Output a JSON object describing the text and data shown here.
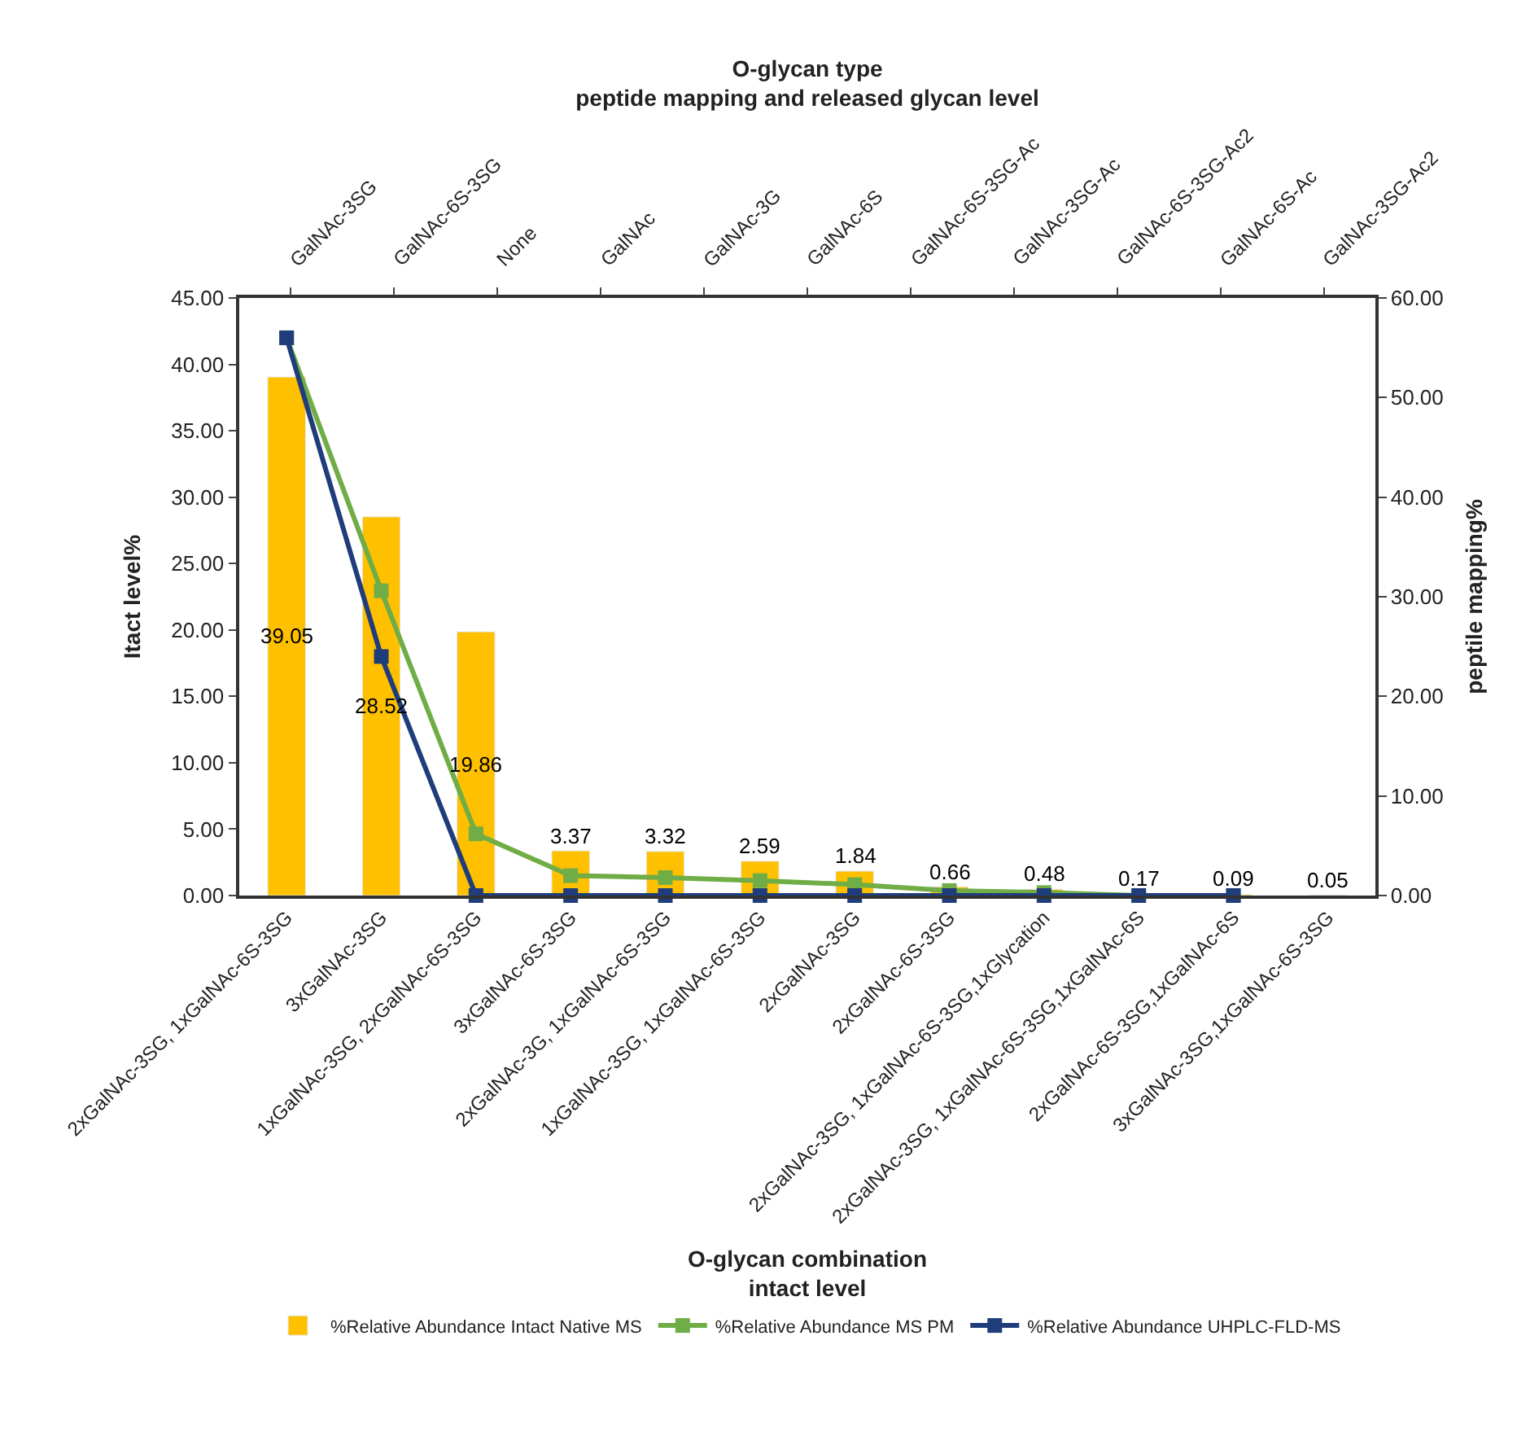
{
  "chart_data": {
    "type": "bar",
    "x2label": "O-glycan type\npeptide mapping and released glycan level",
    "xlabel": "O-glycan combination\nintact level",
    "ylabel": "Itact level%",
    "y2label": "peptile mapping%",
    "categories": [
      "2xGalNAc-3SG, 1xGalNAc-6S-3SG",
      "3xGalNAc-3SG",
      "1xGalNAc-3SG, 2xGalNAc-6S-3SG",
      "3xGalNAc-6S-3SG",
      "2xGalNAc-3G, 1xGalNAc-6S-3SG",
      "1xGalNAc-3SG, 1xGalNAc-6S-3SG",
      "2xGalNAc-3SG",
      "2xGalNAc-6S-3SG",
      "2xGalNAc-3SG, 1xGalNAc-6S-3SG,1xGlycation",
      "2xGalNAc-3SG, 1xGalNAc-6S-3SG,1xGalNAc-6S",
      "2xGalNAc-6S-3SG,1xGalNAc-6S",
      "3xGalNAc-3SG,1xGalNAc-6S-3SG"
    ],
    "annotations": [
      "GalNAc-3SG",
      "GalNAc-6S-3SG",
      "None",
      "GalNAc",
      "GalNAc-3G",
      "GalNAc-6S",
      "GalNAc-6S-3SG-Ac",
      "GalNAc-3SG-Ac",
      "GalNAc-6S-3SG-Ac2",
      "GalNAc-6S-Ac",
      "GalNAc-3SG-Ac2"
    ],
    "series": [
      {
        "name": "%Relative Abundance Intact Native MS",
        "color": "#ffc000",
        "values": [
          39.05,
          28.52,
          19.86,
          3.37,
          3.32,
          2.59,
          1.84,
          0.66,
          0.48,
          0.17,
          0.09,
          0.05
        ],
        "value_labels": [
          "39.05",
          "28.52",
          "19.86",
          "3.37",
          "3.32",
          "2.59",
          "1.84",
          "0.66",
          "0.48",
          "0.17",
          "0.09",
          "0.05"
        ]
      },
      {
        "name": "%Relative Abundance MS PM",
        "type": "line",
        "axis": "y2",
        "color": "#70ad47",
        "values": [
          56.0,
          30.6,
          6.2,
          2.0,
          1.8,
          1.5,
          1.1,
          0.5,
          0.3,
          0.0,
          0.0,
          null
        ]
      },
      {
        "name": "%Relative Abundance UHPLC-FLD-MS",
        "type": "line",
        "axis": "y2",
        "color": "#1f3d7a",
        "values": [
          56.0,
          24.0,
          0,
          0,
          0,
          0,
          0,
          0,
          0,
          0,
          0,
          null
        ]
      }
    ],
    "ylim": [
      0,
      45
    ],
    "yticks": [
      {
        "value": 0,
        "label": "0.00"
      },
      {
        "value": 5,
        "label": "5.00"
      },
      {
        "value": 10,
        "label": "10.00"
      },
      {
        "value": 15,
        "label": "15.00"
      },
      {
        "value": 20,
        "label": "20.00"
      },
      {
        "value": 25,
        "label": "25.00"
      },
      {
        "value": 30,
        "label": "30.00"
      },
      {
        "value": 35,
        "label": "35.00"
      },
      {
        "value": 40,
        "label": "40.00"
      },
      {
        "value": 45,
        "label": "45.00"
      }
    ],
    "y2lim": [
      0,
      60
    ],
    "y2ticks": [
      {
        "value": 0,
        "label": "0.00"
      },
      {
        "value": 10,
        "label": "10.00"
      },
      {
        "value": 20,
        "label": "20.00"
      },
      {
        "value": 30,
        "label": "30.00"
      },
      {
        "value": 40,
        "label": "40.00"
      },
      {
        "value": 50,
        "label": "50.00"
      },
      {
        "value": 60,
        "label": "60.00"
      }
    ],
    "marker": "square",
    "line_style": "solid",
    "legend": "bottom"
  }
}
